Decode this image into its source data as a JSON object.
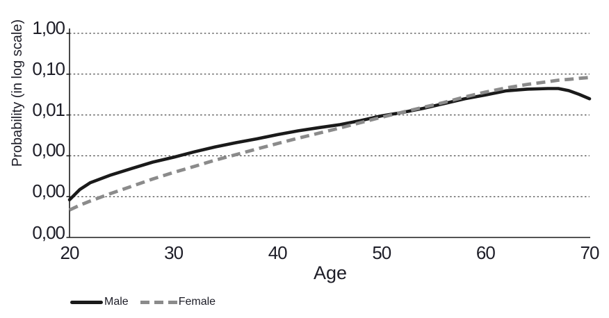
{
  "figure": {
    "background": "#ffffff",
    "text_color": "#1d1d27",
    "axis_color": "#1b1b1b",
    "gridline_style": "horizontal dotted black lines at each log decade"
  },
  "chart_data": {
    "type": "line",
    "title": "",
    "xlabel": "Age",
    "ylabel": "Probability (in log scale)",
    "y_scale": "log",
    "xlim": [
      20,
      70
    ],
    "ylim": [
      1e-05,
      1.0
    ],
    "x_ticks": [
      "20",
      "30",
      "40",
      "50",
      "60",
      "70"
    ],
    "y_tick_labels": [
      "1,00",
      "0,10",
      "0,01",
      "0,00",
      "0,00",
      "0,00"
    ],
    "y_gridline_values": [
      1.0,
      0.1,
      0.01,
      0.001,
      0.0001,
      1e-05
    ],
    "grid": "horizontal-dotted",
    "legend_position": "below-chart-left",
    "x": [
      20,
      21,
      22,
      24,
      26,
      28,
      30,
      32,
      34,
      36,
      38,
      40,
      42,
      44,
      46,
      48,
      50,
      52,
      54,
      56,
      58,
      60,
      62,
      64,
      66,
      67,
      68,
      69,
      70
    ],
    "series": [
      {
        "name": "Male",
        "color": "#1a1a1a",
        "line_style": "solid",
        "values": [
          8.4e-05,
          0.00015,
          0.00022,
          0.00034,
          0.00049,
          0.0007,
          0.00092,
          0.00125,
          0.00165,
          0.0021,
          0.0026,
          0.0033,
          0.0041,
          0.0049,
          0.0058,
          0.0073,
          0.0095,
          0.0115,
          0.0145,
          0.019,
          0.025,
          0.031,
          0.039,
          0.043,
          0.0445,
          0.0445,
          0.0395,
          0.032,
          0.025
        ]
      },
      {
        "name": "Female",
        "color": "#8b8b8b",
        "line_style": "dashed",
        "values": [
          4.7e-05,
          6.2e-05,
          7.8e-05,
          0.00012,
          0.00018,
          0.00027,
          0.00039,
          0.00055,
          0.00078,
          0.00107,
          0.00147,
          0.002,
          0.0027,
          0.0036,
          0.0048,
          0.0065,
          0.0088,
          0.0117,
          0.0154,
          0.0202,
          0.0277,
          0.0364,
          0.046,
          0.056,
          0.0655,
          0.071,
          0.0745,
          0.079,
          0.083
        ]
      }
    ]
  }
}
